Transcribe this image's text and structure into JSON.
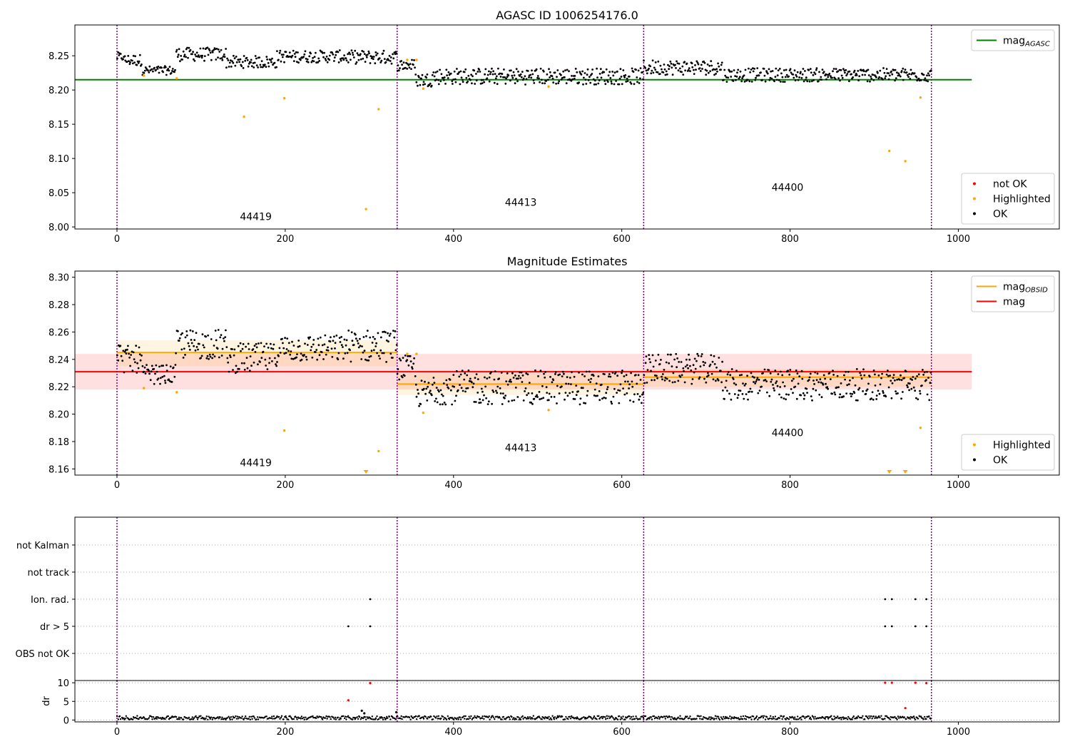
{
  "figure": {
    "background": "#ffffff"
  },
  "chart_data": [
    {
      "id": "panel-mag",
      "type": "scatter",
      "title": "AGASC ID 1006254176.0",
      "xlim": [
        -50,
        1120
      ],
      "ylim": [
        7.997,
        8.295
      ],
      "xticks": [
        0,
        200,
        400,
        600,
        800,
        1000
      ],
      "yticks": [
        8.0,
        8.05,
        8.1,
        8.15,
        8.2,
        8.25
      ],
      "ytick_labels": [
        "8.00",
        "8.05",
        "8.10",
        "8.15",
        "8.20",
        "8.25"
      ],
      "obs_boundaries": [
        0,
        333,
        626,
        968
      ],
      "obs_labels": [
        {
          "text": "44419",
          "x": 165,
          "y": 8.01
        },
        {
          "text": "44413",
          "x": 480,
          "y": 8.031
        },
        {
          "text": "44400",
          "x": 797,
          "y": 8.053
        }
      ],
      "hlines": [
        {
          "name": "mag_agasc",
          "y": 8.215,
          "x": [
            -50,
            1016
          ],
          "color": "#008000"
        }
      ],
      "ok_segments": [
        {
          "x0": 0,
          "x1": 8,
          "y": [
            8.242,
            8.255
          ]
        },
        {
          "x0": 8,
          "x1": 30,
          "y": [
            8.235,
            8.252
          ]
        },
        {
          "x0": 30,
          "x1": 70,
          "y": [
            8.222,
            8.235
          ]
        },
        {
          "x0": 70,
          "x1": 130,
          "y": [
            8.242,
            8.262
          ]
        },
        {
          "x0": 130,
          "x1": 190,
          "y": [
            8.232,
            8.25
          ]
        },
        {
          "x0": 190,
          "x1": 270,
          "y": [
            8.24,
            8.258
          ]
        },
        {
          "x0": 270,
          "x1": 333,
          "y": [
            8.238,
            8.258
          ]
        },
        {
          "x0": 333,
          "x1": 355,
          "y": [
            8.228,
            8.245
          ]
        },
        {
          "x0": 355,
          "x1": 375,
          "y": [
            8.205,
            8.225
          ]
        },
        {
          "x0": 375,
          "x1": 626,
          "y": [
            8.208,
            8.232
          ]
        },
        {
          "x0": 626,
          "x1": 720,
          "y": [
            8.222,
            8.244
          ]
        },
        {
          "x0": 720,
          "x1": 968,
          "y": [
            8.212,
            8.232
          ]
        }
      ],
      "highlighted": [
        {
          "x": 32,
          "y": 8.221
        },
        {
          "x": 71,
          "y": 8.217
        },
        {
          "x": 151,
          "y": 8.161
        },
        {
          "x": 199,
          "y": 8.188
        },
        {
          "x": 296,
          "y": 8.026
        },
        {
          "x": 311,
          "y": 8.172
        },
        {
          "x": 345,
          "y": 8.244
        },
        {
          "x": 356,
          "y": 8.244
        },
        {
          "x": 364,
          "y": 8.202
        },
        {
          "x": 513,
          "y": 8.205
        },
        {
          "x": 918,
          "y": 8.111
        },
        {
          "x": 937,
          "y": 8.096
        },
        {
          "x": 955,
          "y": 8.189
        }
      ],
      "not_ok": [],
      "legends": [
        {
          "position": "top-right",
          "items": [
            {
              "kind": "line",
              "color": "#008000",
              "label": "mag",
              "sub": "AGASC"
            }
          ]
        },
        {
          "position": "bottom-right",
          "items": [
            {
              "kind": "dot",
              "color": "#ff0000",
              "label": "not OK"
            },
            {
              "kind": "dot",
              "color": "#ffa500",
              "label": "Highlighted"
            },
            {
              "kind": "dot",
              "color": "#000000",
              "label": "OK"
            }
          ]
        }
      ]
    },
    {
      "id": "panel-estimates",
      "type": "scatter",
      "title": "Magnitude Estimates",
      "xlim": [
        -50,
        1120
      ],
      "ylim": [
        8.1555,
        8.3045
      ],
      "xticks": [
        0,
        200,
        400,
        600,
        800,
        1000
      ],
      "yticks": [
        8.16,
        8.18,
        8.2,
        8.22,
        8.24,
        8.26,
        8.28,
        8.3
      ],
      "ytick_labels": [
        "8.16",
        "8.18",
        "8.20",
        "8.22",
        "8.24",
        "8.26",
        "8.28",
        "8.30"
      ],
      "obs_boundaries": [
        0,
        333,
        626,
        968
      ],
      "obs_labels": [
        {
          "text": "44419",
          "x": 165,
          "y": 8.162
        },
        {
          "text": "44413",
          "x": 480,
          "y": 8.173
        },
        {
          "text": "44400",
          "x": 797,
          "y": 8.184
        }
      ],
      "bands": [
        {
          "x": [
            -50,
            1016
          ],
          "y": [
            8.218,
            8.244
          ],
          "color": "#ff0000",
          "opacity": 0.12
        },
        {
          "x": [
            0,
            333
          ],
          "y": [
            8.235,
            8.254
          ],
          "color": "#ffa500",
          "opacity": 0.12
        },
        {
          "x": [
            333,
            626
          ],
          "y": [
            8.214,
            8.23
          ],
          "color": "#ffa500",
          "opacity": 0.12
        },
        {
          "x": [
            626,
            968
          ],
          "y": [
            8.22,
            8.233
          ],
          "color": "#ffa500",
          "opacity": 0.12
        }
      ],
      "hlines": [
        {
          "name": "mag",
          "y": 8.231,
          "x": [
            -50,
            1016
          ],
          "color": "#ff0000"
        },
        {
          "name": "mag_obsid_44419",
          "y": 8.245,
          "x": [
            0,
            333
          ],
          "color": "#ffa500"
        },
        {
          "name": "mag_obsid_44413",
          "y": 8.222,
          "x": [
            333,
            626
          ],
          "color": "#ffa500"
        },
        {
          "name": "mag_obsid_44400",
          "y": 8.227,
          "x": [
            626,
            968
          ],
          "color": "#ffa500"
        }
      ],
      "ok_segments": [
        {
          "x0": 0,
          "x1": 8,
          "y": [
            8.238,
            8.252
          ]
        },
        {
          "x0": 8,
          "x1": 30,
          "y": [
            8.23,
            8.25
          ]
        },
        {
          "x0": 30,
          "x1": 70,
          "y": [
            8.222,
            8.236
          ]
        },
        {
          "x0": 70,
          "x1": 130,
          "y": [
            8.24,
            8.262
          ]
        },
        {
          "x0": 130,
          "x1": 190,
          "y": [
            8.23,
            8.252
          ]
        },
        {
          "x0": 190,
          "x1": 270,
          "y": [
            8.238,
            8.258
          ]
        },
        {
          "x0": 270,
          "x1": 333,
          "y": [
            8.238,
            8.262
          ]
        },
        {
          "x0": 333,
          "x1": 355,
          "y": [
            8.225,
            8.243
          ]
        },
        {
          "x0": 355,
          "x1": 375,
          "y": [
            8.205,
            8.225
          ]
        },
        {
          "x0": 375,
          "x1": 626,
          "y": [
            8.207,
            8.232
          ]
        },
        {
          "x0": 626,
          "x1": 720,
          "y": [
            8.222,
            8.244
          ]
        },
        {
          "x0": 720,
          "x1": 968,
          "y": [
            8.21,
            8.233
          ]
        }
      ],
      "highlighted": [
        {
          "x": 32,
          "y": 8.219
        },
        {
          "x": 71,
          "y": 8.216
        },
        {
          "x": 199,
          "y": 8.188
        },
        {
          "x": 311,
          "y": 8.173
        },
        {
          "x": 345,
          "y": 8.244
        },
        {
          "x": 356,
          "y": 8.244
        },
        {
          "x": 364,
          "y": 8.201
        },
        {
          "x": 513,
          "y": 8.203
        },
        {
          "x": 955,
          "y": 8.19
        }
      ],
      "below_range": [
        {
          "x": 296
        },
        {
          "x": 918
        },
        {
          "x": 937
        }
      ],
      "legends": [
        {
          "position": "top-right",
          "items": [
            {
              "kind": "line",
              "color": "#ffa500",
              "label": "mag",
              "sub": "OBSID"
            },
            {
              "kind": "line",
              "color": "#ff0000",
              "label": "mag",
              "sub": ""
            }
          ]
        },
        {
          "position": "bottom-right",
          "items": [
            {
              "kind": "dot",
              "color": "#ffa500",
              "label": "Highlighted"
            },
            {
              "kind": "dot",
              "color": "#000000",
              "label": "OK"
            }
          ]
        }
      ]
    },
    {
      "id": "panel-flags",
      "type": "scatter",
      "title": "",
      "xlim": [
        -50,
        1120
      ],
      "obs_boundaries": [
        0,
        333,
        626,
        968
      ],
      "categories": [
        "not Kalman",
        "not track",
        "Ion. rad.",
        "dr > 5",
        "OBS not OK"
      ],
      "points": [
        {
          "category": "Ion. rad.",
          "x": [
            301,
            913,
            921,
            949,
            962
          ]
        },
        {
          "category": "dr > 5",
          "x": [
            275,
            301,
            913,
            921,
            949,
            962
          ]
        }
      ]
    },
    {
      "id": "panel-dr",
      "type": "scatter",
      "title": "",
      "ylabel": "dr",
      "xlim": [
        -50,
        1120
      ],
      "ylim": [
        -0.5,
        10.6
      ],
      "xticks": [
        0,
        200,
        400,
        600,
        800,
        1000
      ],
      "yticks": [
        0,
        5,
        10
      ],
      "ytick_labels": [
        "0",
        "5",
        "10"
      ],
      "obs_boundaries": [
        0,
        333,
        626,
        968
      ],
      "baseline": {
        "x": [
          0,
          968
        ],
        "y": [
          0.1,
          1.1
        ]
      },
      "spikes": [
        {
          "x": 275,
          "y": 5.3,
          "color": "#ff0000"
        },
        {
          "x": 291,
          "y": 2.5,
          "color": "#000000"
        },
        {
          "x": 294,
          "y": 1.8,
          "color": "#000000"
        },
        {
          "x": 301,
          "y": 9.9,
          "color": "#ff0000"
        },
        {
          "x": 332,
          "y": 2.1,
          "color": "#000000"
        },
        {
          "x": 913,
          "y": 10.0,
          "color": "#ff0000"
        },
        {
          "x": 921,
          "y": 10.0,
          "color": "#ff0000"
        },
        {
          "x": 937,
          "y": 3.2,
          "color": "#ff0000"
        },
        {
          "x": 949,
          "y": 10.0,
          "color": "#ff0000"
        },
        {
          "x": 962,
          "y": 9.9,
          "color": "#ff0000"
        }
      ]
    }
  ]
}
